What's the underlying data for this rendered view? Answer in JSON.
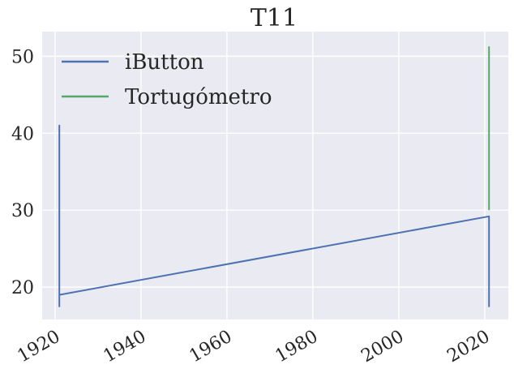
{
  "chart_data": {
    "type": "line",
    "title": "T11",
    "xlabel": "",
    "ylabel": "",
    "xlim": [
      1917,
      2025.5
    ],
    "ylim": [
      15.8,
      53.2
    ],
    "xticks": [
      1920,
      1940,
      1960,
      1980,
      2000,
      2020
    ],
    "yticks": [
      20,
      30,
      40,
      50
    ],
    "grid": true,
    "legend_position": "upper-left",
    "series": [
      {
        "name": "iButton",
        "color": "#4c72b0",
        "x": [
          1921.0,
          1921.0,
          1921.0,
          1921.0,
          1921.0,
          1921.0,
          1921.0,
          1921.0,
          1921.0,
          1921.0,
          1921.0,
          2021.0,
          2021.0,
          2021.0,
          2021.0,
          2021.0,
          2021.0
        ],
        "y": [
          28.0,
          41.0,
          22.0,
          35.0,
          19.5,
          38.0,
          17.5,
          25.0,
          30.0,
          21.0,
          19.0,
          29.2,
          17.5,
          27.0,
          19.0,
          24.0,
          18.5
        ]
      },
      {
        "name": "Tortugómetro",
        "color": "#55a868",
        "x": [
          2021.0,
          2021.0,
          2021.0,
          2021.0,
          2021.0,
          2021.0,
          2021.0,
          2021.0,
          2021.0
        ],
        "y": [
          30.0,
          46.0,
          35.0,
          51.2,
          38.0,
          45.0,
          33.0,
          44.0,
          40.0
        ]
      }
    ]
  }
}
